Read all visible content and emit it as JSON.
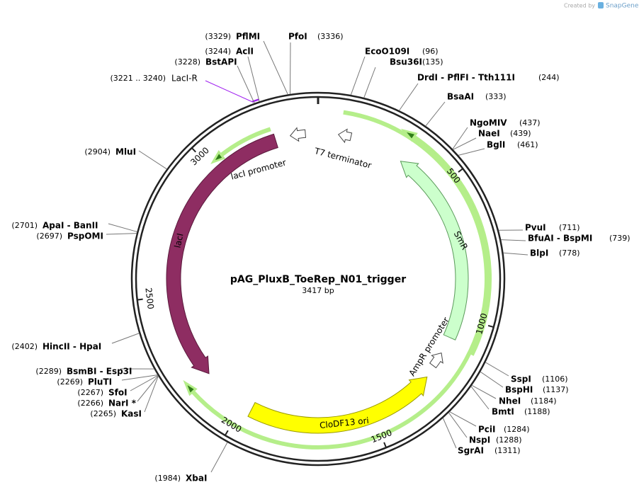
{
  "header": {
    "credit": "Created by",
    "brand": "SnapGene"
  },
  "plasmid": {
    "name": "pAG_PluxB_ToeRep_N01_trigger",
    "size": "3417 bp"
  },
  "ticks": [
    500,
    1000,
    1500,
    2000,
    2500,
    3000
  ],
  "primer": {
    "range": "(3221 .. 3240)",
    "name": "LacI-R"
  },
  "features": [
    {
      "label": "lacI"
    },
    {
      "label": "lacI promoter"
    },
    {
      "label": "T7 terminator"
    },
    {
      "label": "SmR"
    },
    {
      "label": "AmpR promoter"
    },
    {
      "label": "CloDF13 ori"
    }
  ],
  "sites": [
    {
      "name": "PflMI",
      "position": "(3329)"
    },
    {
      "name": "PfoI",
      "position": "(3336)"
    },
    {
      "name": "AclI",
      "position": "(3244)"
    },
    {
      "name": "BstAPI",
      "position": "(3228)"
    },
    {
      "name": "EcoO109I",
      "position": "(96)"
    },
    {
      "name": "Bsu36I",
      "position": "(135)"
    },
    {
      "name": "DrdI  - PflFI  - Tth111I",
      "position": "(244)"
    },
    {
      "name": "BsaAI",
      "position": "(333)"
    },
    {
      "name": "NgoMIV",
      "position": "(437)"
    },
    {
      "name": "NaeI",
      "position": "(439)"
    },
    {
      "name": "BglI",
      "position": "(461)"
    },
    {
      "name": "PvuI",
      "position": "(711)"
    },
    {
      "name": "BfuAI  - BspMI",
      "position": "(739)"
    },
    {
      "name": "BlpI",
      "position": "(778)"
    },
    {
      "name": "SspI",
      "position": "(1106)"
    },
    {
      "name": "BspHI",
      "position": "(1137)"
    },
    {
      "name": "NheI",
      "position": "(1184)"
    },
    {
      "name": "BmtI",
      "position": "(1188)"
    },
    {
      "name": "PciI",
      "position": "(1284)"
    },
    {
      "name": "NspI",
      "position": "(1288)"
    },
    {
      "name": "SgrAI",
      "position": "(1311)"
    },
    {
      "name": "XbaI",
      "position": "(1984)"
    },
    {
      "name": "HincII  - HpaI",
      "position": "(2402)"
    },
    {
      "name": "BsmBI  - Esp3I",
      "position": "(2289)"
    },
    {
      "name": "PluTI",
      "position": "(2269)"
    },
    {
      "name": "SfoI",
      "position": "(2267)"
    },
    {
      "name": "NarI *",
      "position": "(2266)"
    },
    {
      "name": "KasI",
      "position": "(2265)"
    },
    {
      "name": "ApaI  - BanII",
      "position": "(2701)"
    },
    {
      "name": "PspOMI",
      "position": "(2697)"
    },
    {
      "name": "MluI",
      "position": "(2904)"
    }
  ]
}
